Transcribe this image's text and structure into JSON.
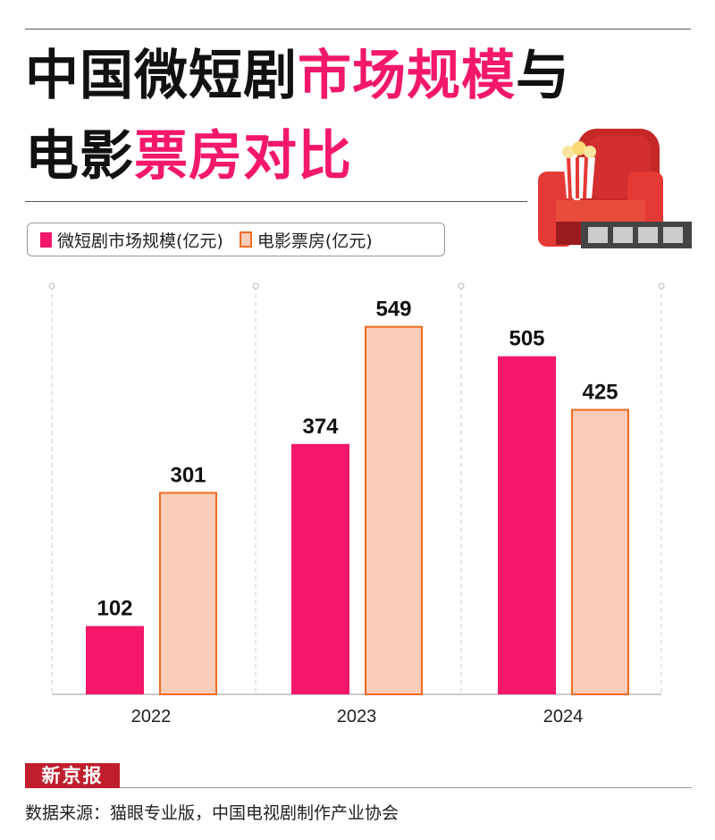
{
  "title": {
    "line1_a": "中国微短剧",
    "line1_b": "市场规模",
    "line1_c": "与",
    "line2_a": "电影",
    "line2_b": "票房对比"
  },
  "colors": {
    "pink": "#f4176a",
    "peach": "#f9cdb8",
    "orange": "#f26a21"
  },
  "chart_data": {
    "type": "bar",
    "categories": [
      "2022",
      "2023",
      "2024"
    ],
    "series": [
      {
        "name": "微短剧市场规模(亿元)",
        "values": [
          102,
          374,
          505
        ]
      },
      {
        "name": "电影票房(亿元)",
        "values": [
          301,
          549,
          425
        ]
      }
    ],
    "ylim": [
      0,
      610
    ],
    "legend_position": "top-left",
    "grid": "vertical dashed"
  },
  "footer": {
    "logo": "新京报",
    "source": "数据来源：猫眼专业版，中国电视剧制作产业协会"
  }
}
